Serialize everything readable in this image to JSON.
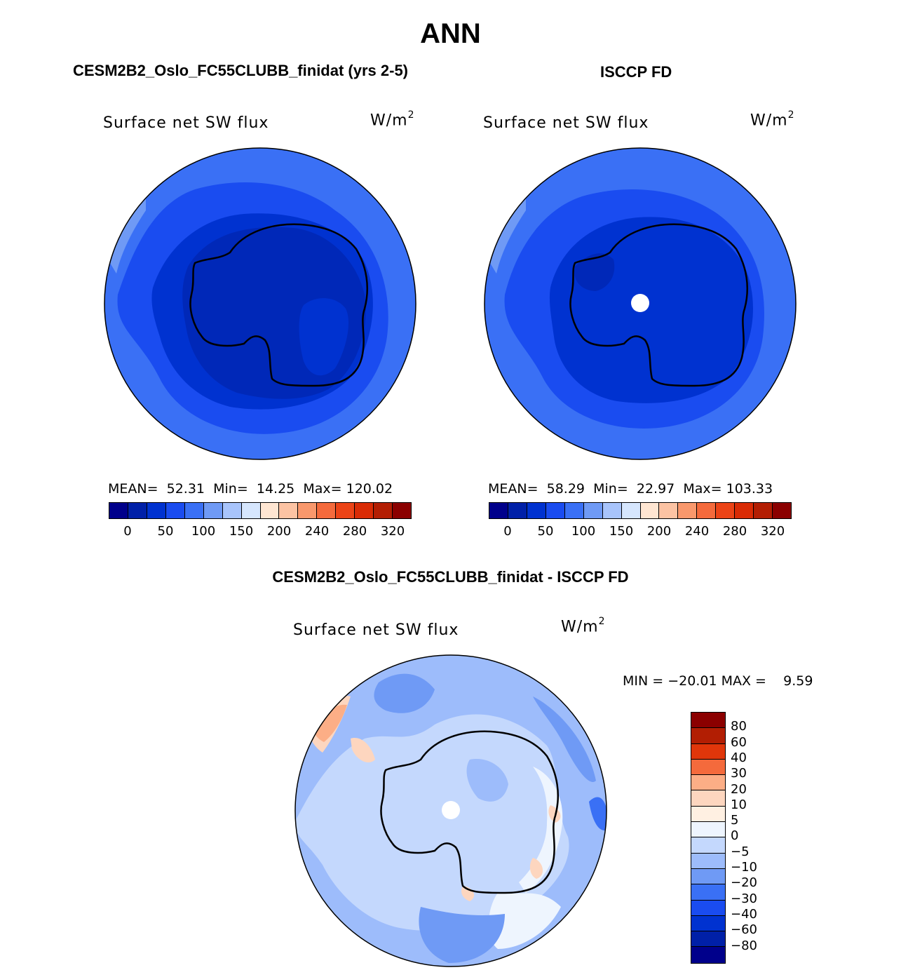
{
  "main_title": "ANN",
  "panels": {
    "left": {
      "title": "CESM2B2_Oslo_FC55CLUBB_finidat (yrs 2-5)",
      "variable": "Surface net SW flux",
      "unit_base": "W/m",
      "unit_exp": "2",
      "mean_label": "MEAN=",
      "mean": "52.31",
      "min_label": "Min=",
      "min": "14.25",
      "max_label": "Max=",
      "max": "120.02"
    },
    "right": {
      "title": "ISCCP FD",
      "variable": "Surface net SW flux",
      "unit_base": "W/m",
      "unit_exp": "2",
      "mean_label": "MEAN=",
      "mean": "58.29",
      "min_label": "Min=",
      "min": "22.97",
      "max_label": "Max=",
      "max": "103.33"
    },
    "diff": {
      "title": "CESM2B2_Oslo_FC55CLUBB_finidat - ISCCP FD",
      "variable": "Surface net SW flux",
      "unit_base": "W/m",
      "unit_exp": "2",
      "min_label": "MIN =",
      "min": "−20.01",
      "max_label": "MAX =",
      "max": "9.59"
    }
  },
  "colorbar_abs": {
    "colors": [
      "#00008b",
      "#0020a8",
      "#0032d0",
      "#1a4cf0",
      "#3a70f5",
      "#6f9af5",
      "#a8c4fb",
      "#d6e6fd",
      "#ffe6d2",
      "#fcc3a3",
      "#f9986c",
      "#f46a3c",
      "#ec4316",
      "#d92b05",
      "#b31e03",
      "#8b0000"
    ],
    "tick_labels": [
      "0",
      "50",
      "100",
      "150",
      "200",
      "240",
      "280",
      "320"
    ]
  },
  "colorbar_diff": {
    "colors_top_to_bottom": [
      "#8b0000",
      "#b21e03",
      "#e0360a",
      "#f46a3c",
      "#fcae86",
      "#fdd6bf",
      "#fff0e2",
      "#eef5fe",
      "#c4d8fd",
      "#9dbcfb",
      "#6f9af5",
      "#3a70f5",
      "#1a4cf0",
      "#0032d0",
      "#0020a8",
      "#00008b"
    ],
    "tick_labels_top_to_bottom": [
      "80",
      "60",
      "40",
      "30",
      "20",
      "10",
      "5",
      "0",
      "−5",
      "−10",
      "−20",
      "−30",
      "−40",
      "−60",
      "−80"
    ]
  },
  "map_colors": {
    "left_ocean_outer": "#3a70f5",
    "left_ocean_mid": "#1a4cf0",
    "left_land": "#0032d0",
    "left_inner": "#0028b8",
    "left_edge_light": "#6f9af5",
    "right_ocean_outer": "#3a70f5",
    "right_ocean_mid": "#1a4cf0",
    "right_land": "#0032d0",
    "right_edge_light": "#6f9af5",
    "diff_base": "#9dbcfb",
    "diff_light": "#c4d8fd",
    "diff_mid": "#6f9af5",
    "diff_pale": "#eef5fe",
    "diff_warm": "#fdd6bf",
    "pole_hole": "#ffffff",
    "coast": "#000000"
  }
}
